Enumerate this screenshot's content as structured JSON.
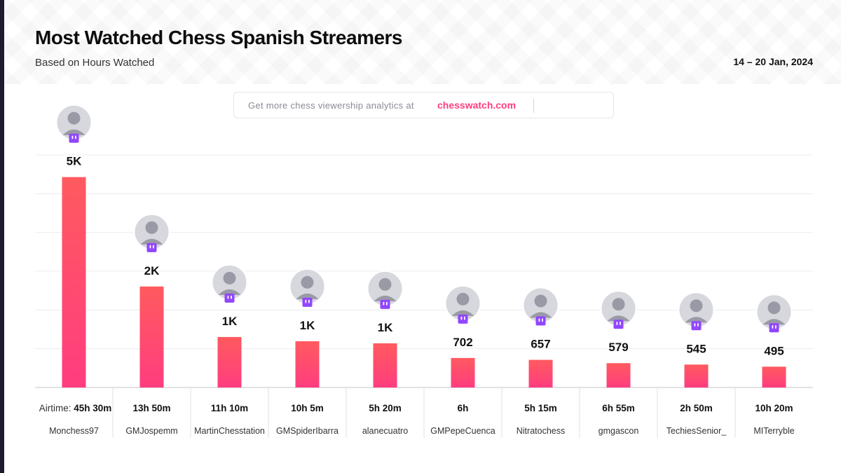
{
  "header": {
    "title": "Most Watched Chess Spanish Streamers",
    "subtitle": "Based on Hours Watched",
    "date_range": "14 – 20 Jan, 2024"
  },
  "promo": {
    "text": "Get more chess viewership analytics at",
    "link": "chesswatch.com"
  },
  "colors": {
    "bar_top": "#ff5a5f",
    "bar_bottom": "#ff3d7f",
    "twitch": "#9146ff"
  },
  "chart_data": {
    "type": "bar",
    "categories": [
      "Monchess97",
      "GMJospemm",
      "MartinChesstation",
      "GMSpiderIbarra",
      "alanecuatro",
      "GMPepeCuenca",
      "Nitratochess",
      "gmgascon",
      "TechiesSenior_",
      "MITerryble"
    ],
    "values": [
      5000,
      2400,
      1200,
      1100,
      1050,
      702,
      657,
      579,
      545,
      495
    ],
    "data_labels": [
      "5K",
      "2K",
      "1K",
      "1K",
      "1K",
      "702",
      "657",
      "579",
      "545",
      "495"
    ],
    "airtime_label": "Airtime:",
    "airtime": [
      "45h 30m",
      "13h 50m",
      "11h 10m",
      "10h 5m",
      "5h 20m",
      "6h",
      "5h 15m",
      "6h 55m",
      "2h 50m",
      "10h 20m"
    ],
    "ylim": [
      0,
      5500
    ],
    "grid": true,
    "platform_icon": "twitch-icon"
  }
}
